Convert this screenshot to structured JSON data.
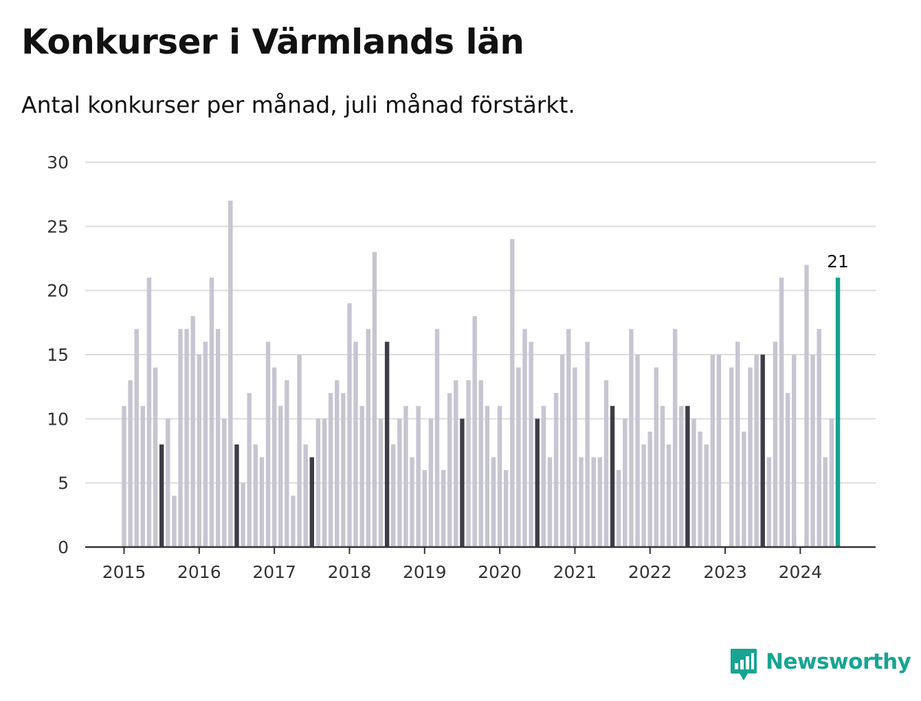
{
  "header": {
    "title": "Konkurser i Värmlands län",
    "subtitle": "Antal konkurser per månad, juli månad förstärkt."
  },
  "brand": {
    "name": "Newsworthy",
    "icon": "newsworthy-logo-icon",
    "color": "#17a493"
  },
  "colors": {
    "bar": "#c6c5d1",
    "july": "#3e3c47",
    "latest": "#14a08f",
    "grid": "#dddddd",
    "axis": "#333333"
  },
  "chart_data": {
    "type": "bar",
    "start": "2015-01",
    "x_tick_labels": [
      "2015",
      "2016",
      "2017",
      "2018",
      "2019",
      "2020",
      "2021",
      "2022",
      "2023",
      "2024"
    ],
    "ylim": [
      0,
      30
    ],
    "y_ticks": [
      0,
      5,
      10,
      15,
      20,
      25,
      30
    ],
    "highlight_month": 7,
    "latest_label": "21",
    "grid": true,
    "values": [
      11,
      13,
      17,
      11,
      21,
      14,
      8,
      10,
      4,
      17,
      17,
      18,
      15,
      16,
      21,
      17,
      10,
      27,
      8,
      5,
      12,
      8,
      7,
      16,
      14,
      11,
      13,
      4,
      15,
      8,
      7,
      10,
      10,
      12,
      13,
      12,
      19,
      16,
      11,
      17,
      23,
      10,
      16,
      8,
      10,
      11,
      7,
      11,
      6,
      10,
      17,
      6,
      12,
      13,
      10,
      13,
      18,
      13,
      11,
      7,
      11,
      6,
      24,
      14,
      17,
      16,
      10,
      11,
      7,
      12,
      15,
      17,
      14,
      7,
      16,
      7,
      7,
      13,
      11,
      6,
      10,
      17,
      15,
      8,
      9,
      14,
      11,
      8,
      17,
      11,
      11,
      10,
      9,
      8,
      15,
      15,
      0,
      14,
      16,
      9,
      14,
      15,
      15,
      7,
      16,
      21,
      12,
      15,
      0,
      22,
      15,
      17,
      7,
      10,
      21
    ]
  }
}
